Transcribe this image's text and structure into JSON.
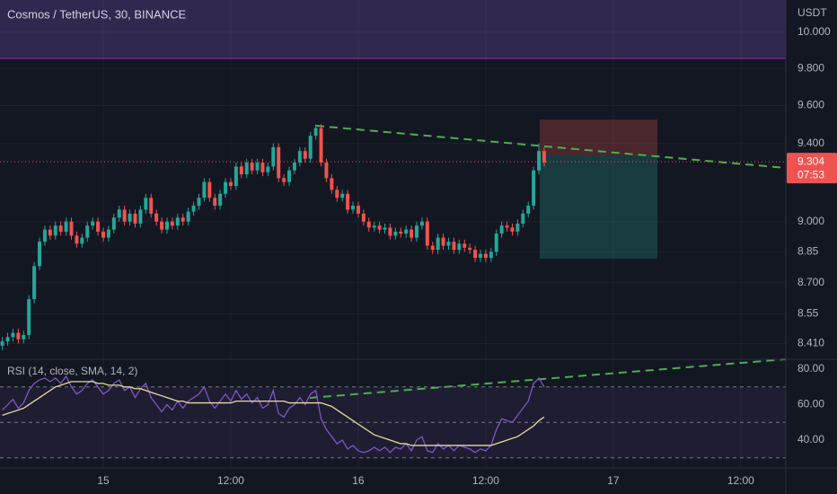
{
  "chart_data": [
    {
      "type": "candlestick",
      "title": "Cosmos / TetherUS, 30, BINANCE",
      "y_axis_label": "USDT",
      "x": [
        14.5,
        15,
        15.5,
        16,
        16.5,
        17,
        17.5,
        18,
        18.5,
        19,
        19.5,
        20,
        20.5,
        21,
        21.5,
        22,
        22.5,
        23,
        23.5,
        24,
        24.5,
        25,
        25.5,
        26,
        26.5,
        27,
        27.5,
        28,
        28.5,
        29,
        29.5,
        30,
        30.5,
        31,
        31.5,
        32,
        32.5,
        33,
        33.5,
        34,
        34.5,
        35,
        35.5,
        36,
        36.5,
        37,
        37.5,
        38,
        38.5,
        39,
        39.5,
        40,
        40.5,
        41,
        41.5,
        42,
        42.5,
        43,
        43.5,
        44,
        44.5,
        45,
        45.5,
        46,
        46.5,
        47,
        47.5,
        48,
        48.5,
        49,
        49.5,
        50,
        50.5,
        51,
        51.5,
        52,
        52.5,
        53,
        53.5,
        54,
        54.5,
        55,
        55.5,
        56,
        56.5,
        57,
        57.5,
        58,
        58.5,
        59,
        59.5,
        60,
        60.5,
        61,
        61.5,
        62,
        62.5,
        63,
        63.5,
        64,
        64.5,
        65,
        65.5
      ],
      "open": [
        8.4,
        8.42,
        8.44,
        8.46,
        8.43,
        8.45,
        8.62,
        8.78,
        8.9,
        8.96,
        8.93,
        8.98,
        8.95,
        9.0,
        8.93,
        8.89,
        8.92,
        8.98,
        9.0,
        8.95,
        8.92,
        8.96,
        9.02,
        9.06,
        9.0,
        9.04,
        8.99,
        9.06,
        9.12,
        9.04,
        9.0,
        8.96,
        9.0,
        8.98,
        9.02,
        9.0,
        9.05,
        9.08,
        9.12,
        9.2,
        9.12,
        9.08,
        9.14,
        9.2,
        9.18,
        9.28,
        9.24,
        9.3,
        9.26,
        9.3,
        9.25,
        9.28,
        9.38,
        9.22,
        9.2,
        9.26,
        9.3,
        9.36,
        9.32,
        9.44,
        9.48,
        9.3,
        9.22,
        9.16,
        9.12,
        9.14,
        9.06,
        9.08,
        9.04,
        9.0,
        8.97,
        8.98,
        8.96,
        8.97,
        8.93,
        8.95,
        8.94,
        8.96,
        8.92,
        8.98,
        9.0,
        8.88,
        8.86,
        8.92,
        8.88,
        8.9,
        8.86,
        8.89,
        8.87,
        8.86,
        8.82,
        8.84,
        8.82,
        8.85,
        8.94,
        8.98,
        8.97,
        8.95,
        8.99,
        9.04,
        9.08,
        9.26,
        9.36
      ],
      "high": [
        8.44,
        8.46,
        8.48,
        8.48,
        8.47,
        8.64,
        8.8,
        8.92,
        8.98,
        8.98,
        9.0,
        9.0,
        9.02,
        9.02,
        8.95,
        8.94,
        9.0,
        9.02,
        9.02,
        8.97,
        8.98,
        9.04,
        9.08,
        9.08,
        9.06,
        9.06,
        9.08,
        9.14,
        9.14,
        9.06,
        9.02,
        9.02,
        9.02,
        9.04,
        9.04,
        9.07,
        9.1,
        9.14,
        9.22,
        9.22,
        9.14,
        9.16,
        9.22,
        9.22,
        9.3,
        9.3,
        9.32,
        9.32,
        9.32,
        9.32,
        9.3,
        9.4,
        9.4,
        9.24,
        9.28,
        9.32,
        9.38,
        9.38,
        9.46,
        9.5,
        9.5,
        9.32,
        9.24,
        9.18,
        9.16,
        9.16,
        9.1,
        9.1,
        9.06,
        9.02,
        9.0,
        9.0,
        8.99,
        8.99,
        8.97,
        8.97,
        8.98,
        8.98,
        9.0,
        9.02,
        9.02,
        8.9,
        8.94,
        8.94,
        8.92,
        8.92,
        8.91,
        8.91,
        8.89,
        8.88,
        8.86,
        8.86,
        8.87,
        8.96,
        9.0,
        9.0,
        8.99,
        9.01,
        9.06,
        9.1,
        9.28,
        9.4,
        9.38
      ],
      "low": [
        8.38,
        8.4,
        8.42,
        8.41,
        8.41,
        8.43,
        8.6,
        8.76,
        8.88,
        8.91,
        8.91,
        8.93,
        8.93,
        8.91,
        8.87,
        8.87,
        8.9,
        8.96,
        8.93,
        8.9,
        8.9,
        8.94,
        9.0,
        8.98,
        8.98,
        8.97,
        8.97,
        9.04,
        9.02,
        8.98,
        8.94,
        8.94,
        8.96,
        8.96,
        8.98,
        8.98,
        9.03,
        9.06,
        9.1,
        9.1,
        9.06,
        9.06,
        9.12,
        9.16,
        9.16,
        9.22,
        9.22,
        9.24,
        9.24,
        9.23,
        9.23,
        9.26,
        9.2,
        9.18,
        9.18,
        9.24,
        9.28,
        9.3,
        9.3,
        9.42,
        9.28,
        9.2,
        9.14,
        9.1,
        9.1,
        9.04,
        9.04,
        9.02,
        8.98,
        8.95,
        8.95,
        8.94,
        8.94,
        8.91,
        8.91,
        8.92,
        8.92,
        8.9,
        8.9,
        8.96,
        8.86,
        8.84,
        8.84,
        8.86,
        8.86,
        8.84,
        8.84,
        8.85,
        8.84,
        8.8,
        8.8,
        8.8,
        8.8,
        8.83,
        8.92,
        8.95,
        8.93,
        8.93,
        8.97,
        9.02,
        9.06,
        9.24,
        9.28
      ],
      "close": [
        8.42,
        8.44,
        8.46,
        8.43,
        8.45,
        8.62,
        8.78,
        8.9,
        8.96,
        8.93,
        8.98,
        8.95,
        9.0,
        8.93,
        8.89,
        8.92,
        8.98,
        9.0,
        8.95,
        8.92,
        8.96,
        9.02,
        9.06,
        9.0,
        9.04,
        8.99,
        9.06,
        9.12,
        9.04,
        9.0,
        8.96,
        9.0,
        8.98,
        9.02,
        9.0,
        9.05,
        9.08,
        9.12,
        9.2,
        9.12,
        9.08,
        9.14,
        9.2,
        9.18,
        9.28,
        9.24,
        9.3,
        9.26,
        9.3,
        9.25,
        9.28,
        9.38,
        9.22,
        9.2,
        9.26,
        9.3,
        9.36,
        9.32,
        9.44,
        9.48,
        9.3,
        9.22,
        9.16,
        9.12,
        9.14,
        9.06,
        9.08,
        9.04,
        9.0,
        8.97,
        8.98,
        8.96,
        8.97,
        8.93,
        8.95,
        8.94,
        8.96,
        8.92,
        8.98,
        9.0,
        8.88,
        8.86,
        8.92,
        8.88,
        8.9,
        8.86,
        8.89,
        8.87,
        8.86,
        8.82,
        8.84,
        8.82,
        8.85,
        8.94,
        8.98,
        8.97,
        8.95,
        8.99,
        9.04,
        9.08,
        9.26,
        9.36,
        9.3
      ],
      "up_color": "#26a69a",
      "down_color": "#ef5350",
      "xlim": [
        14.28,
        88.24
      ],
      "xticks": [
        {
          "value": 24,
          "label": "15"
        },
        {
          "value": 36,
          "label": "12:00"
        },
        {
          "value": 48,
          "label": "16"
        },
        {
          "value": 60,
          "label": "12:00"
        },
        {
          "value": 72,
          "label": "17"
        },
        {
          "value": 84,
          "label": "12:00"
        }
      ],
      "ylim": [
        8.345,
        10.18
      ],
      "yticks": [
        {
          "value": 8.41,
          "label": "8.410"
        },
        8.55,
        {
          "value": 8.7,
          "label": "8.700"
        },
        8.85,
        {
          "value": 9,
          "label": "9.000"
        },
        {
          "value": 9.4,
          "label": "9.400"
        },
        {
          "value": 9.6,
          "label": "9.600"
        },
        {
          "value": 9.8,
          "label": "9.800"
        },
        {
          "value": 10,
          "label": "10.000"
        }
      ],
      "log_scale": true,
      "grid": true,
      "last_price": 9.304,
      "countdown": "07:53"
    },
    {
      "type": "line",
      "title": "RSI (14, close, SMA, 14, 2)",
      "series": [
        {
          "color": "#7e57c2",
          "values": [
            57,
            60,
            63,
            58,
            61,
            68,
            72,
            74,
            75,
            73,
            75,
            72,
            76,
            70,
            66,
            68,
            72,
            74,
            70,
            66,
            68,
            72,
            74,
            68,
            70,
            64,
            69,
            72,
            64,
            60,
            56,
            60,
            57,
            62,
            58,
            62,
            64,
            66,
            70,
            62,
            58,
            62,
            66,
            62,
            68,
            63,
            66,
            61,
            64,
            58,
            60,
            68,
            55,
            53,
            58,
            60,
            64,
            60,
            66,
            68,
            52,
            46,
            42,
            38,
            40,
            35,
            37,
            34,
            33,
            34,
            36,
            34,
            36,
            33,
            36,
            35,
            38,
            34,
            40,
            42,
            34,
            33,
            38,
            35,
            37,
            34,
            37,
            36,
            35,
            33,
            35,
            34,
            37,
            46,
            52,
            51,
            50,
            54,
            58,
            62,
            72,
            75,
            70
          ]
        },
        {
          "color": "#e9dba0",
          "values": [
            54,
            55,
            56,
            57,
            58,
            60,
            62,
            64,
            66,
            68,
            70,
            71,
            72,
            73,
            73,
            73,
            73,
            73,
            72,
            72,
            71,
            71,
            71,
            70,
            70,
            69,
            69,
            68,
            67,
            66,
            65,
            64,
            63,
            62,
            62,
            61,
            61,
            61,
            61,
            61,
            61,
            61,
            61,
            61,
            62,
            62,
            62,
            62,
            62,
            62,
            62,
            62,
            62,
            62,
            61,
            61,
            61,
            61,
            61,
            61,
            61,
            60,
            59,
            57,
            55,
            53,
            51,
            49,
            47,
            45,
            43,
            42,
            41,
            40,
            39,
            38,
            38,
            37,
            37,
            37,
            37,
            37,
            37,
            37,
            37,
            37,
            37,
            37,
            37,
            37,
            37,
            37,
            37,
            38,
            39,
            40,
            41,
            42,
            44,
            46,
            48,
            51,
            53
          ]
        }
      ],
      "ylim": [
        24.8,
        84.6
      ],
      "yticks": [
        {
          "value": 40,
          "label": "40.00"
        },
        {
          "value": 60,
          "label": "60.00"
        },
        {
          "value": 80,
          "label": "80.00"
        }
      ],
      "levels": [
        70,
        50,
        30
      ]
    }
  ]
}
